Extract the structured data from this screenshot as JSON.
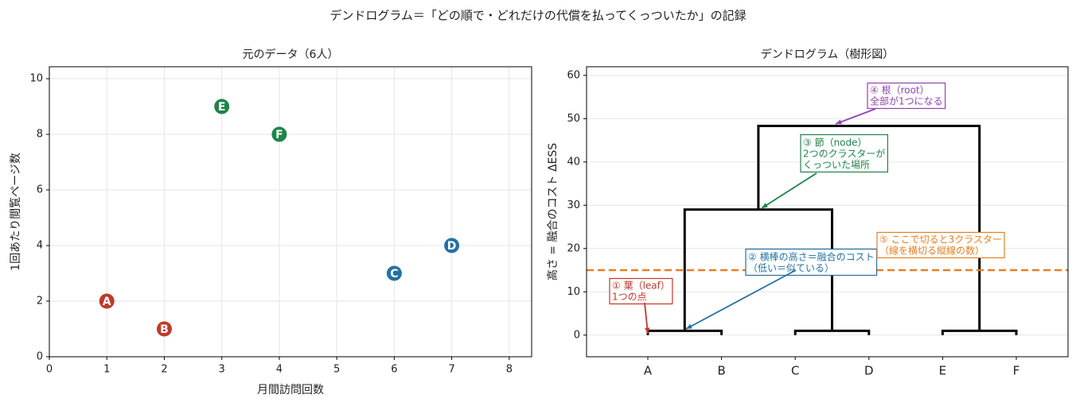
{
  "title": "デンドログラム＝「どの順で・どれだけの代償を払ってくっついたか」の記録",
  "chart_data": [
    {
      "type": "scatter",
      "title": "元のデータ（6人）",
      "xlabel": "月間訪問回数",
      "ylabel": "1回あたり閲覧ページ数",
      "labels": [
        "A",
        "B",
        "C",
        "D",
        "E",
        "F"
      ],
      "x": [
        1,
        2,
        6,
        7,
        3,
        4
      ],
      "values": [
        2,
        1,
        3,
        4,
        9,
        8
      ],
      "colors": [
        "#c0392b",
        "#c0392b",
        "#2471a3",
        "#2471a3",
        "#1e8449",
        "#1e8449"
      ],
      "xlim": [
        0,
        8.39
      ],
      "xticks": [
        0,
        1,
        2,
        3,
        4,
        5,
        6,
        7,
        8
      ],
      "ylim": [
        0,
        10.43
      ],
      "yticks": [
        0,
        2,
        4,
        6,
        8,
        10
      ],
      "grid": true
    },
    {
      "type": "dendrogram",
      "title": "デンドログラム（樹形図）",
      "ylabel": "高さ = 融合のコスト ΔESS",
      "categories": [
        "A",
        "B",
        "C",
        "D",
        "E",
        "F"
      ],
      "links": [
        [
          0,
          1,
          1
        ],
        [
          2,
          3,
          1
        ],
        [
          4,
          5,
          1
        ],
        [
          6,
          7,
          29
        ],
        [
          8,
          9,
          48.33
        ]
      ],
      "ylim": [
        -5,
        62
      ],
      "yticks": [
        0,
        10,
        20,
        30,
        40,
        50,
        60
      ],
      "grid": true,
      "color": "#000000",
      "cut": 15,
      "cut_color": "#e67e22",
      "annotations": [
        {
          "lines": [
            "① 葉（leaf）",
            "1つの点"
          ],
          "color": "#c0392b"
        },
        {
          "lines": [
            "② 横棒の高さ＝融合のコスト",
            "（低い＝似ている）"
          ],
          "color": "#2471a3"
        },
        {
          "lines": [
            "③ 節（node）",
            "2つのクラスターが",
            "くっついた場所"
          ],
          "color": "#1e8449"
        },
        {
          "lines": [
            "④ 根（root）",
            "全部が1つになる"
          ],
          "color": "#8e44ad"
        },
        {
          "lines": [
            "⑤ ここで切ると3クラスター",
            "（線を横切る縦線の数）"
          ],
          "color": "#e67e22"
        }
      ]
    }
  ]
}
